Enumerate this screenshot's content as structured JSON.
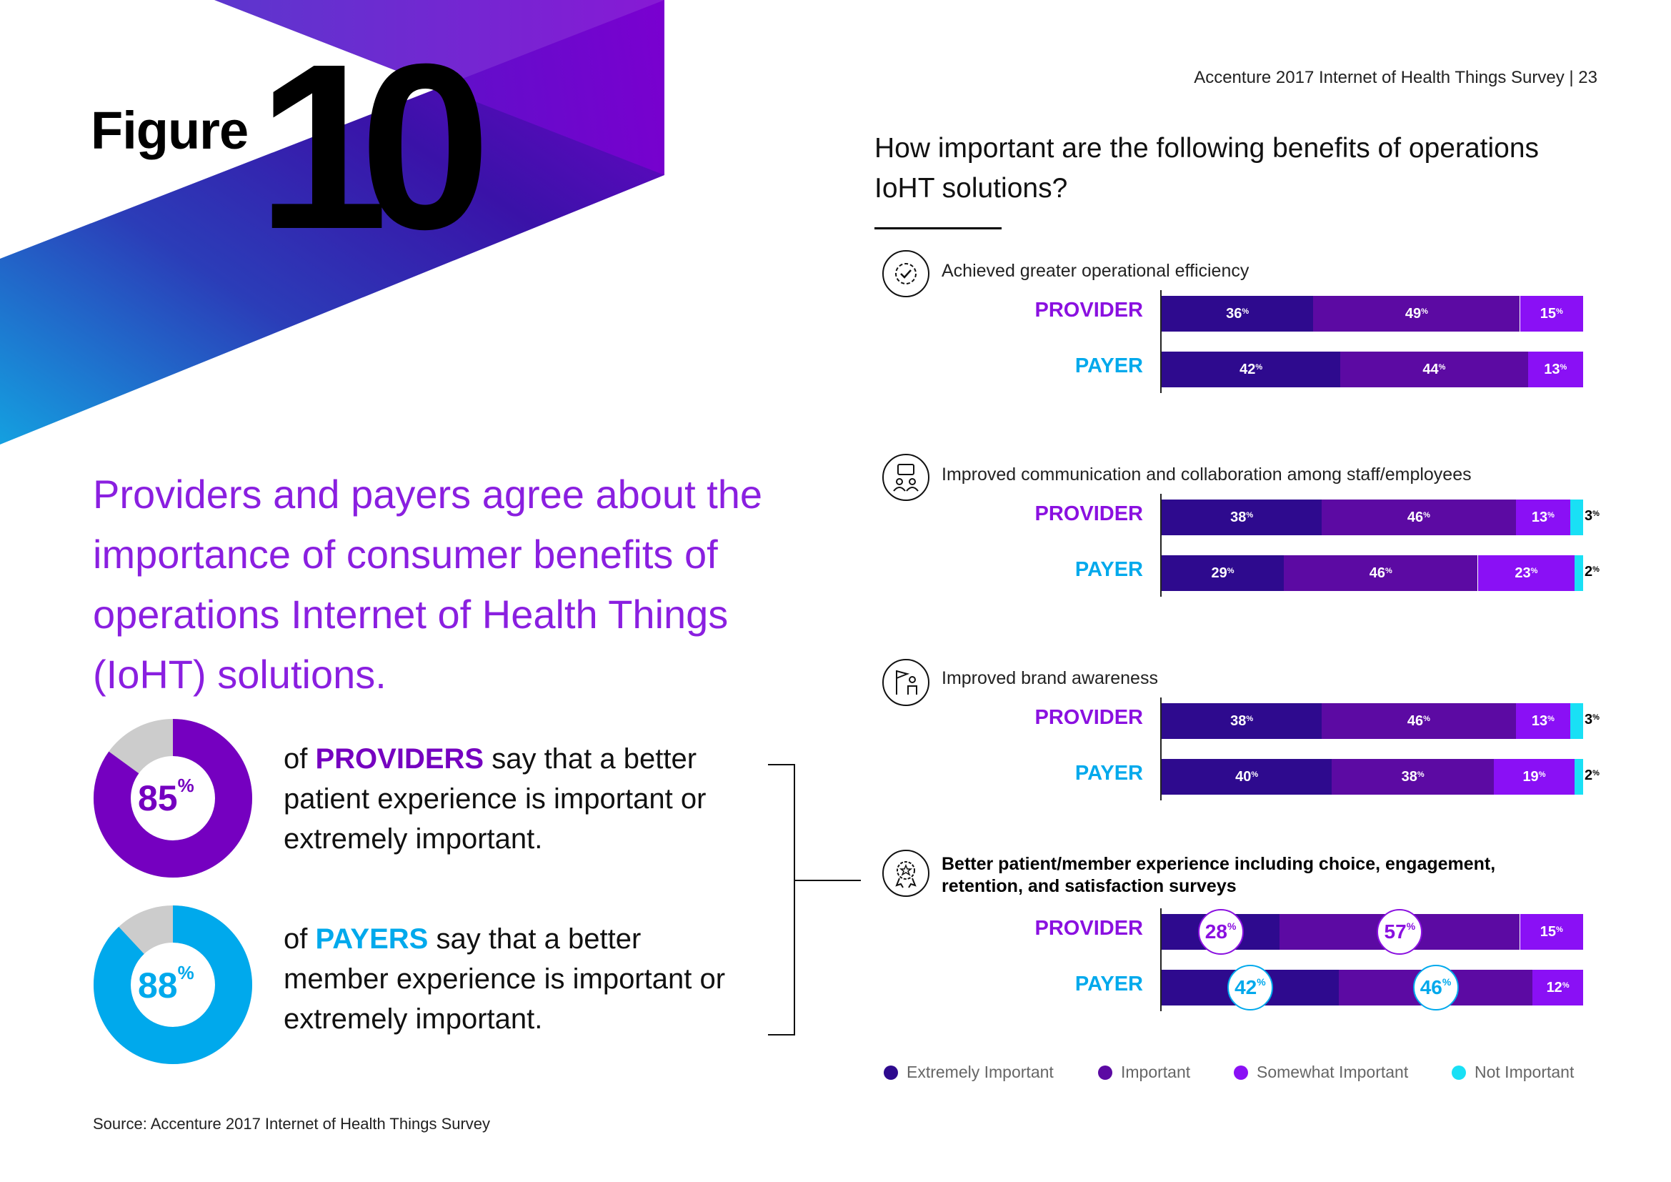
{
  "header": {
    "figure_word": "Figure",
    "figure_number": "10",
    "page_ref": "Accenture 2017 Internet of Health Things Survey | 23"
  },
  "question": "How important are the following benefits of operations IoHT solutions?",
  "headline": "Providers and payers agree about the importance of consumer benefits of operations Internet of Health Things (IoHT) solutions.",
  "stats": [
    {
      "value": "85",
      "suffix": "%",
      "percent": 85,
      "pre": "of ",
      "group": "PROVIDERS",
      "post": " say that a better patient experience is important or extremely important.",
      "color": "#7500c0"
    },
    {
      "value": "88",
      "suffix": "%",
      "percent": 88,
      "pre": "of ",
      "group": "PAYERS",
      "post": " say that a better member experience is important or extremely important.",
      "color": "#00a9ec"
    }
  ],
  "source": "Source: Accenture 2017 Internet of Health Things Survey",
  "colors": {
    "extremely": "#2e0a8e",
    "important": "#5c0aa3",
    "somewhat": "#8a10f5",
    "not": "#19e0f5",
    "provider": "#8a10e0",
    "payer": "#00a9ec",
    "donut_rest": "#cccccc"
  },
  "icons": [
    "gear-check-icon",
    "chat-people-icon",
    "flag-person-icon",
    "star-badge-icon"
  ],
  "chart_data": {
    "type": "bar",
    "orientation": "horizontal",
    "stacked": true,
    "legend": [
      "Extremely Important",
      "Important",
      "Somewhat Important",
      "Not Important"
    ],
    "legend_position": "bottom",
    "groups": [
      {
        "title": "Achieved greater operational efficiency",
        "bold": false,
        "rows": [
          {
            "label": "PROVIDER",
            "values": [
              36,
              49,
              15,
              0
            ]
          },
          {
            "label": "PAYER",
            "values": [
              42,
              44,
              13,
              0
            ]
          }
        ]
      },
      {
        "title": "Improved communication and collaboration among staff/employees",
        "bold": false,
        "rows": [
          {
            "label": "PROVIDER",
            "values": [
              38,
              46,
              13,
              3
            ]
          },
          {
            "label": "PAYER",
            "values": [
              29,
              46,
              23,
              2
            ]
          }
        ]
      },
      {
        "title": "Improved brand awareness",
        "bold": false,
        "rows": [
          {
            "label": "PROVIDER",
            "values": [
              38,
              46,
              13,
              3
            ]
          },
          {
            "label": "PAYER",
            "values": [
              40,
              38,
              19,
              2
            ]
          }
        ]
      },
      {
        "title": "Better patient/member experience including choice, engagement, retention, and satisfaction surveys",
        "bold": true,
        "highlight_circles": true,
        "rows": [
          {
            "label": "PROVIDER",
            "values": [
              28,
              57,
              15,
              0
            ]
          },
          {
            "label": "PAYER",
            "values": [
              42,
              46,
              12,
              0
            ]
          }
        ]
      }
    ]
  }
}
